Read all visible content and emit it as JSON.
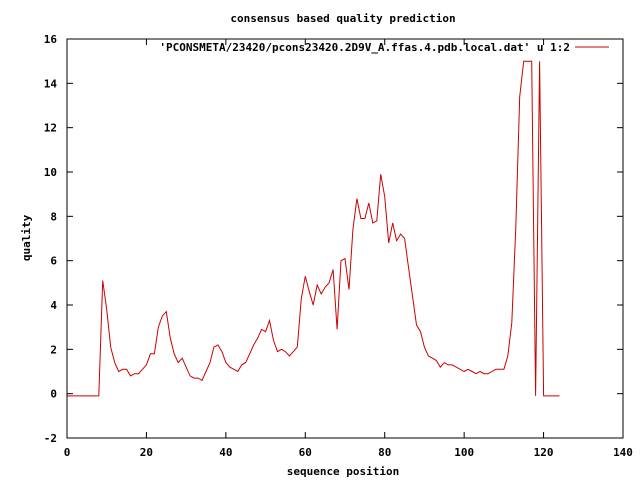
{
  "chart_data": {
    "type": "line",
    "title": "consensus based quality prediction",
    "xlabel": "sequence position",
    "ylabel": "quality",
    "xlim": [
      0,
      140
    ],
    "ylim": [
      -2,
      16
    ],
    "x_ticks": [
      0,
      20,
      40,
      60,
      80,
      100,
      120,
      140
    ],
    "y_ticks": [
      -2,
      0,
      2,
      4,
      6,
      8,
      10,
      12,
      14,
      16
    ],
    "x_tick_labels": [
      "0",
      "20",
      "40",
      "60",
      "80",
      "100",
      "120",
      "140"
    ],
    "y_tick_labels": [
      "-2",
      "0",
      "2",
      "4",
      "6",
      "8",
      "10",
      "12",
      "14",
      "16"
    ],
    "grid": false,
    "legend_position": "top-right",
    "series": [
      {
        "name": "'PCONSMETA/23420/pcons23420.2D9V_A.ffas.4.pdb.local.dat' u 1:2",
        "color": "#cc0000",
        "x": [
          0,
          1,
          2,
          3,
          4,
          5,
          6,
          7,
          8,
          9,
          10,
          11,
          12,
          13,
          14,
          15,
          16,
          17,
          18,
          19,
          20,
          21,
          22,
          23,
          24,
          25,
          26,
          27,
          28,
          29,
          30,
          31,
          32,
          33,
          34,
          35,
          36,
          37,
          38,
          39,
          40,
          41,
          42,
          43,
          44,
          45,
          46,
          47,
          48,
          49,
          50,
          51,
          52,
          53,
          54,
          55,
          56,
          57,
          58,
          59,
          60,
          61,
          62,
          63,
          64,
          65,
          66,
          67,
          68,
          69,
          70,
          71,
          72,
          73,
          74,
          75,
          76,
          77,
          78,
          79,
          80,
          81,
          82,
          83,
          84,
          85,
          86,
          87,
          88,
          89,
          90,
          91,
          92,
          93,
          94,
          95,
          96,
          97,
          98,
          99,
          100,
          101,
          102,
          103,
          104,
          105,
          106,
          107,
          108,
          109,
          110,
          111,
          112,
          113,
          114,
          115,
          116,
          117,
          118,
          119,
          120,
          121,
          122,
          123,
          124
        ],
        "y": [
          -0.1,
          -0.1,
          -0.1,
          -0.1,
          -0.1,
          -0.1,
          -0.1,
          -0.1,
          -0.1,
          5.1,
          3.8,
          2.1,
          1.4,
          1.0,
          1.1,
          1.1,
          0.8,
          0.9,
          0.9,
          1.1,
          1.3,
          1.8,
          1.8,
          3.0,
          3.5,
          3.7,
          2.5,
          1.8,
          1.4,
          1.6,
          1.2,
          0.8,
          0.7,
          0.7,
          0.6,
          1.0,
          1.4,
          2.1,
          2.2,
          1.9,
          1.4,
          1.2,
          1.1,
          1.0,
          1.3,
          1.4,
          1.8,
          2.2,
          2.5,
          2.9,
          2.8,
          3.3,
          2.4,
          1.9,
          2.0,
          1.9,
          1.7,
          1.9,
          2.1,
          4.3,
          5.3,
          4.6,
          4.0,
          4.9,
          4.5,
          4.8,
          5.0,
          5.6,
          2.9,
          6.0,
          6.1,
          4.7,
          7.4,
          8.8,
          7.9,
          7.9,
          8.6,
          7.7,
          7.8,
          9.9,
          8.9,
          6.8,
          7.7,
          6.9,
          7.2,
          7.0,
          5.7,
          4.4,
          3.1,
          2.8,
          2.1,
          1.7,
          1.6,
          1.5,
          1.2,
          1.4,
          1.3,
          1.3,
          1.2,
          1.1,
          1.0,
          1.1,
          1.0,
          0.9,
          1.0,
          0.9,
          0.9,
          1.0,
          1.1,
          1.1,
          1.1,
          1.7,
          3.2,
          7.5,
          13.4,
          15.0,
          15.0,
          15.0,
          -0.1,
          15.0,
          -0.1,
          -0.1,
          -0.1,
          -0.1,
          -0.1
        ]
      }
    ]
  }
}
